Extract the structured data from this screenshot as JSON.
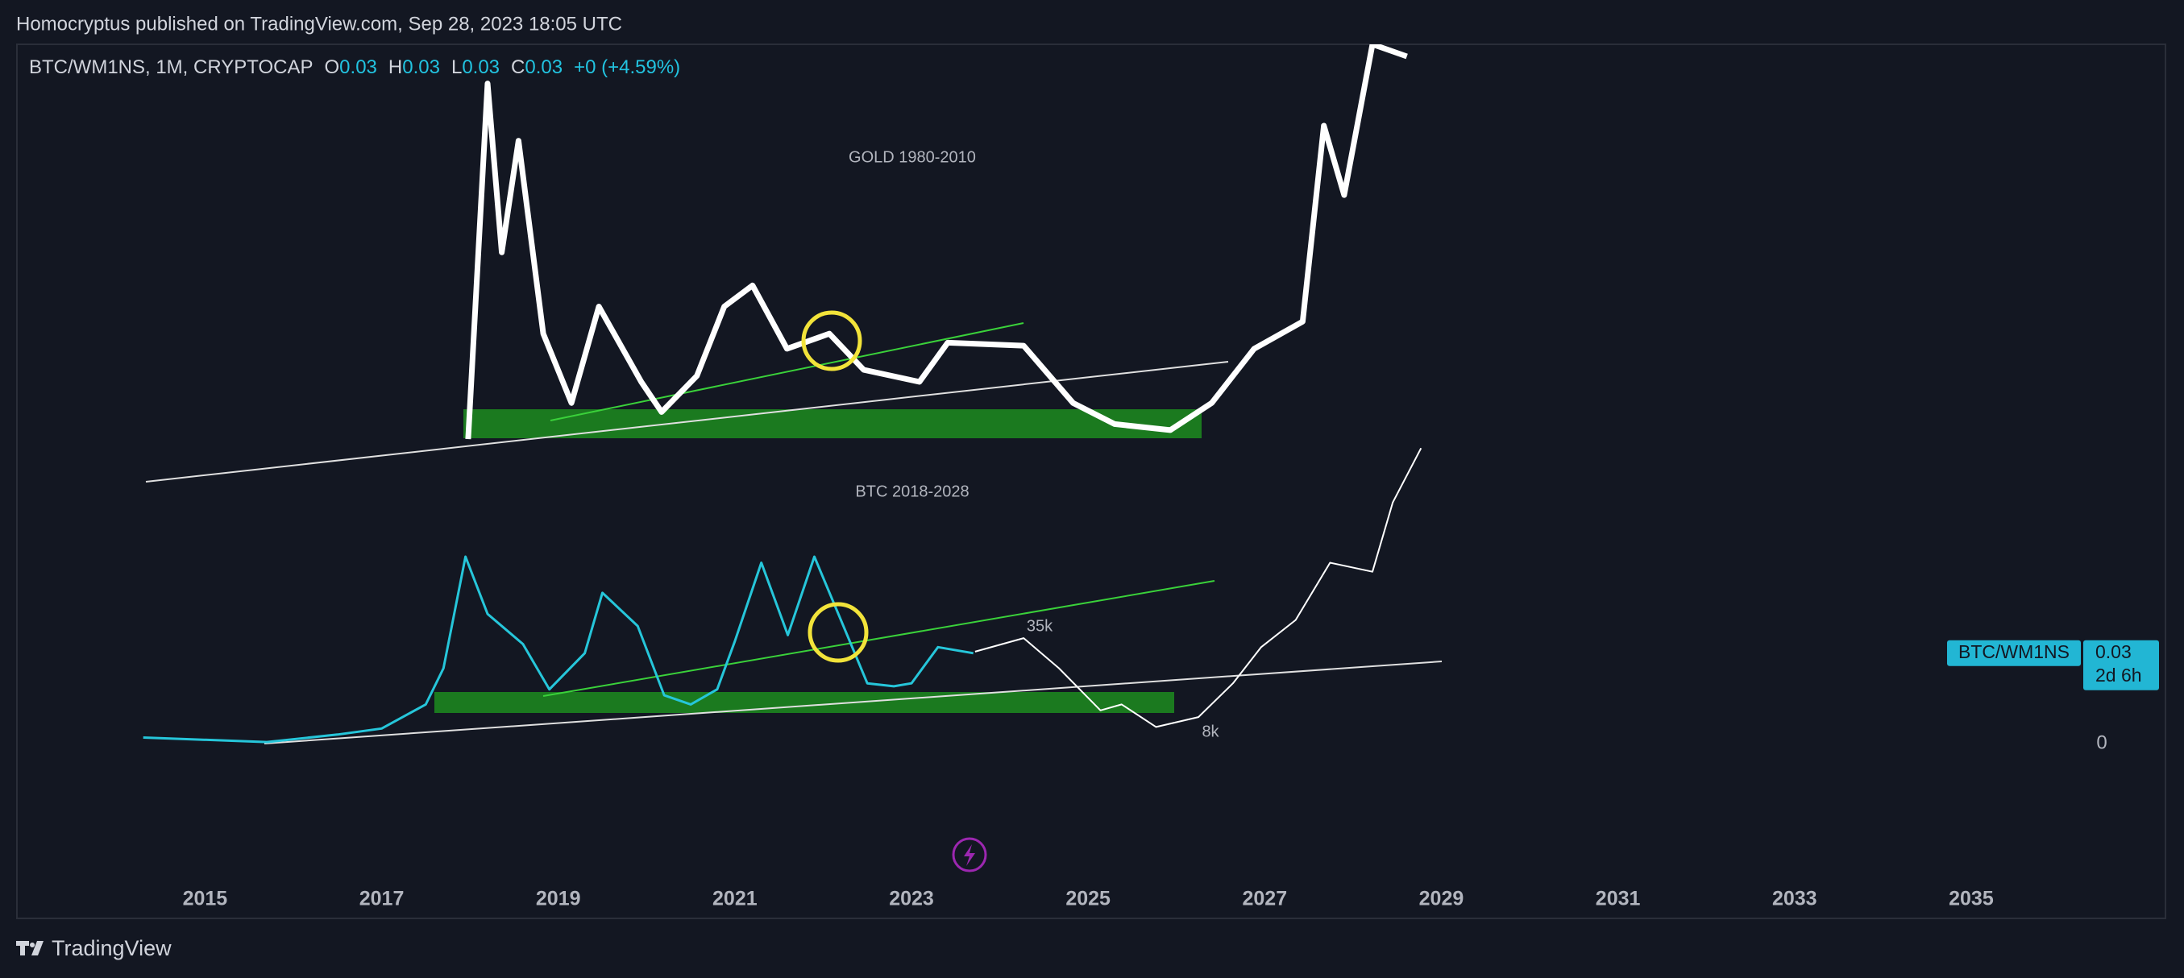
{
  "header": {
    "text": "Homocryptus published on TradingView.com, Sep 28, 2023 18:05 UTC"
  },
  "footer": {
    "brand": "TradingView"
  },
  "chart_data": {
    "type": "line",
    "legend": {
      "symbol": "BTC/WM1NS, 1M, CRYPTOCAP",
      "open_label": "O",
      "open": 0.03,
      "high_label": "H",
      "high": 0.03,
      "low_label": "L",
      "low": 0.03,
      "close_label": "C",
      "close": 0.03,
      "change": "+0 (+4.59%)"
    },
    "annotations": {
      "gold": "GOLD 1980-2010",
      "btc": "BTC 2018-2028",
      "high_target": "35k",
      "low_target": "8k"
    },
    "xlim": [
      2012.87,
      2037.2
    ],
    "xticks": [
      2015,
      2017,
      2019,
      2021,
      2023,
      2025,
      2027,
      2029,
      2031,
      2033,
      2035
    ],
    "ylim": [
      -0.058,
      0.232
    ],
    "yticks": [
      0
    ],
    "grid": false,
    "price_label": {
      "name": "BTC/WM1NS",
      "value": 0.03,
      "countdown": "2d 6h"
    },
    "series": [
      {
        "name": "BTC/WM1NS",
        "color": "#26c6da",
        "width": 3,
        "x": [
          2014.3,
          2015.7,
          2016.5,
          2017.0,
          2017.5,
          2017.7,
          2017.95,
          2018.2,
          2018.6,
          2018.9,
          2019.3,
          2019.5,
          2019.9,
          2020.2,
          2020.5,
          2020.8,
          2021.0,
          2021.3,
          2021.6,
          2021.9,
          2022.2,
          2022.5,
          2022.8,
          2023.0,
          2023.3,
          2023.7
        ],
        "values": [
          0.002,
          0.0005,
          0.003,
          0.005,
          0.013,
          0.025,
          0.062,
          0.043,
          0.033,
          0.018,
          0.03,
          0.05,
          0.039,
          0.016,
          0.013,
          0.018,
          0.034,
          0.06,
          0.036,
          0.062,
          0.041,
          0.02,
          0.019,
          0.02,
          0.032,
          0.03
        ]
      },
      {
        "name": "GOLD 1980-2010",
        "color": "#ffffff",
        "width": 7,
        "x": [
          2017.98,
          2018.2,
          2018.36,
          2018.55,
          2018.83,
          2019.15,
          2019.46,
          2019.94,
          2020.17,
          2020.57,
          2020.88,
          2021.2,
          2021.59,
          2022.07,
          2022.46,
          2023.09,
          2023.41,
          2024.27,
          2024.83,
          2025.3,
          2025.93,
          2026.4,
          2026.88,
          2027.43,
          2027.67,
          2027.9,
          2028.22,
          2028.61
        ],
        "values": [
          0.101,
          0.219,
          0.163,
          0.2,
          0.136,
          0.113,
          0.145,
          0.12,
          0.11,
          0.122,
          0.145,
          0.152,
          0.131,
          0.136,
          0.124,
          0.12,
          0.133,
          0.132,
          0.113,
          0.106,
          0.104,
          0.113,
          0.131,
          0.14,
          0.205,
          0.182,
          0.232,
          0.228
        ]
      },
      {
        "name": "BTC 2018-2028",
        "color": "#ffffff",
        "width": 2,
        "x": [
          2023.72,
          2024.27,
          2024.67,
          2025.14,
          2025.38,
          2025.77,
          2026.25,
          2026.64,
          2026.96,
          2027.35,
          2027.74,
          2028.22,
          2028.45,
          2028.77
        ],
        "values": [
          0.0305,
          0.035,
          0.025,
          0.011,
          0.013,
          0.0055,
          0.0088,
          0.02,
          0.032,
          0.041,
          0.06,
          0.057,
          0.08,
          0.098
        ]
      }
    ]
  }
}
